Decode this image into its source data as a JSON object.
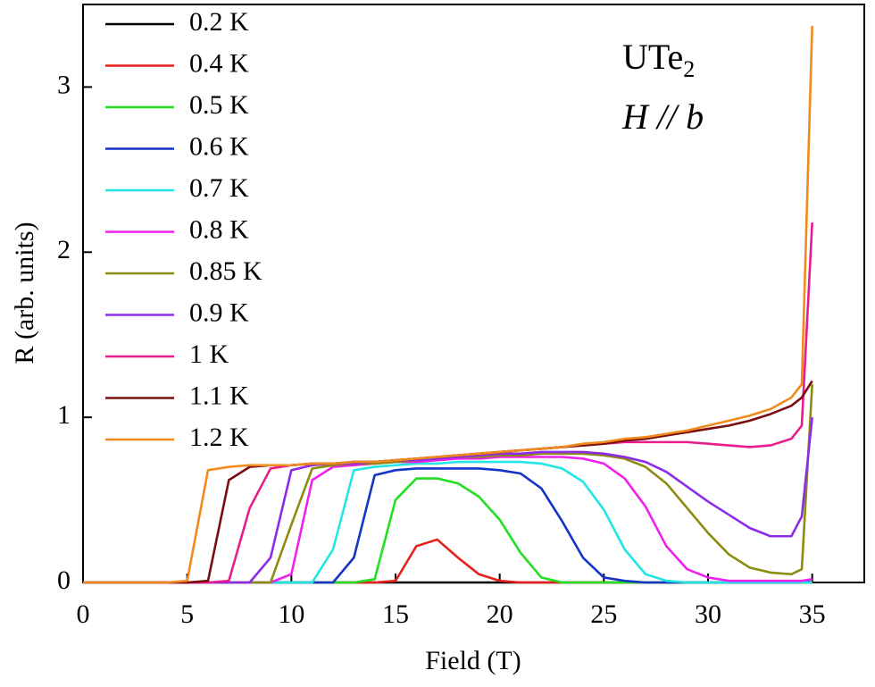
{
  "chart_data": {
    "type": "line",
    "xlabel": "Field (T)",
    "ylabel": "R (arb. units)",
    "annotations": [
      {
        "text": "UTe",
        "sub": "2"
      },
      {
        "text": "H // b"
      }
    ],
    "x": [
      0,
      1,
      2,
      3,
      4,
      5,
      6,
      7,
      8,
      9,
      10,
      11,
      12,
      13,
      14,
      15,
      16,
      17,
      18,
      19,
      20,
      21,
      22,
      23,
      24,
      25,
      26,
      27,
      28,
      29,
      30,
      31,
      32,
      33,
      34,
      34.5,
      35
    ],
    "xlim": [
      0,
      37.5
    ],
    "xticks": [
      0,
      5,
      10,
      15,
      20,
      25,
      30,
      35
    ],
    "ylim": [
      0,
      3.5
    ],
    "yticks": [
      0,
      1,
      2,
      3
    ],
    "legend": "upper left",
    "series": [
      {
        "name": "0.2 K",
        "color": "#000000",
        "values": [
          0,
          0,
          0,
          0,
          0,
          0,
          0,
          0,
          0,
          0,
          0,
          0,
          0,
          0,
          0,
          0,
          0,
          0,
          0,
          0,
          0,
          0,
          0,
          0,
          0,
          0,
          0,
          0,
          0,
          0,
          0,
          0,
          0,
          0,
          0,
          0,
          0
        ]
      },
      {
        "name": "0.4 K",
        "color": "#e8201c",
        "values": [
          0,
          0,
          0,
          0,
          0,
          0,
          0,
          0,
          0,
          0,
          0,
          0,
          0,
          0,
          0,
          0.01,
          0.22,
          0.26,
          0.15,
          0.05,
          0.01,
          0,
          0,
          0,
          0,
          0,
          0,
          0,
          0,
          0,
          0,
          0,
          0,
          0,
          0,
          0,
          0
        ]
      },
      {
        "name": "0.5 K",
        "color": "#22e022",
        "values": [
          0,
          0,
          0,
          0,
          0,
          0,
          0,
          0,
          0,
          0,
          0,
          0,
          0,
          0,
          0.02,
          0.5,
          0.63,
          0.63,
          0.6,
          0.52,
          0.38,
          0.18,
          0.03,
          0,
          0,
          0,
          0,
          0,
          0,
          0,
          0,
          0,
          0,
          0,
          0,
          0,
          0
        ]
      },
      {
        "name": "0.6 K",
        "color": "#1434c8",
        "values": [
          0,
          0,
          0,
          0,
          0,
          0,
          0,
          0,
          0,
          0,
          0,
          0,
          0,
          0.15,
          0.65,
          0.68,
          0.69,
          0.69,
          0.69,
          0.69,
          0.68,
          0.66,
          0.57,
          0.37,
          0.15,
          0.03,
          0.01,
          0,
          0,
          0,
          0,
          0,
          0,
          0,
          0,
          0,
          0.02
        ]
      },
      {
        "name": "0.7 K",
        "color": "#22e6e6",
        "values": [
          0,
          0,
          0,
          0,
          0,
          0,
          0,
          0,
          0,
          0,
          0,
          0,
          0.2,
          0.68,
          0.7,
          0.71,
          0.72,
          0.72,
          0.73,
          0.73,
          0.73,
          0.73,
          0.72,
          0.69,
          0.61,
          0.44,
          0.2,
          0.05,
          0.01,
          0,
          0,
          0,
          0,
          0,
          0,
          0,
          0
        ]
      },
      {
        "name": "0.8 K",
        "color": "#f020f0",
        "values": [
          0,
          0,
          0,
          0,
          0,
          0,
          0,
          0,
          0,
          0,
          0.05,
          0.62,
          0.7,
          0.71,
          0.72,
          0.73,
          0.73,
          0.74,
          0.75,
          0.75,
          0.76,
          0.76,
          0.76,
          0.76,
          0.75,
          0.72,
          0.63,
          0.46,
          0.22,
          0.08,
          0.03,
          0.01,
          0.01,
          0.01,
          0.01,
          0.01,
          0.02
        ]
      },
      {
        "name": "0.85 K",
        "color": "#8c8c10",
        "values": [
          0,
          0,
          0,
          0,
          0,
          0,
          0,
          0,
          0,
          0,
          0.35,
          0.69,
          0.71,
          0.72,
          0.72,
          0.73,
          0.74,
          0.75,
          0.76,
          0.76,
          0.77,
          0.77,
          0.78,
          0.78,
          0.78,
          0.77,
          0.75,
          0.7,
          0.6,
          0.45,
          0.3,
          0.17,
          0.09,
          0.06,
          0.05,
          0.08,
          1.2
        ]
      },
      {
        "name": "0.9 K",
        "color": "#8c2ce8",
        "values": [
          0,
          0,
          0,
          0,
          0,
          0,
          0,
          0,
          0,
          0.15,
          0.68,
          0.71,
          0.72,
          0.72,
          0.73,
          0.74,
          0.74,
          0.75,
          0.76,
          0.77,
          0.78,
          0.78,
          0.79,
          0.79,
          0.79,
          0.78,
          0.76,
          0.73,
          0.67,
          0.58,
          0.49,
          0.41,
          0.33,
          0.28,
          0.28,
          0.4,
          1.0
        ]
      },
      {
        "name": "1 K",
        "color": "#e81c8c",
        "values": [
          0,
          0,
          0,
          0,
          0,
          0,
          0,
          0.01,
          0.45,
          0.69,
          0.71,
          0.72,
          0.72,
          0.73,
          0.73,
          0.74,
          0.75,
          0.76,
          0.77,
          0.78,
          0.79,
          0.8,
          0.81,
          0.82,
          0.83,
          0.84,
          0.85,
          0.85,
          0.85,
          0.85,
          0.84,
          0.83,
          0.82,
          0.83,
          0.87,
          0.95,
          2.18
        ]
      },
      {
        "name": "1.1 K",
        "color": "#7a0e0e",
        "values": [
          0,
          0,
          0,
          0,
          0,
          0,
          0.01,
          0.62,
          0.7,
          0.71,
          0.71,
          0.72,
          0.72,
          0.73,
          0.73,
          0.74,
          0.75,
          0.76,
          0.77,
          0.78,
          0.79,
          0.8,
          0.81,
          0.82,
          0.83,
          0.84,
          0.86,
          0.87,
          0.89,
          0.91,
          0.93,
          0.95,
          0.98,
          1.02,
          1.07,
          1.12,
          1.22
        ]
      },
      {
        "name": "1.2 K",
        "color": "#f08a1c",
        "values": [
          0,
          0,
          0,
          0,
          0,
          0.01,
          0.68,
          0.7,
          0.71,
          0.71,
          0.71,
          0.72,
          0.72,
          0.73,
          0.73,
          0.74,
          0.75,
          0.76,
          0.77,
          0.78,
          0.79,
          0.8,
          0.81,
          0.82,
          0.84,
          0.85,
          0.87,
          0.88,
          0.9,
          0.92,
          0.95,
          0.98,
          1.01,
          1.05,
          1.12,
          1.2,
          3.37
        ]
      }
    ]
  }
}
